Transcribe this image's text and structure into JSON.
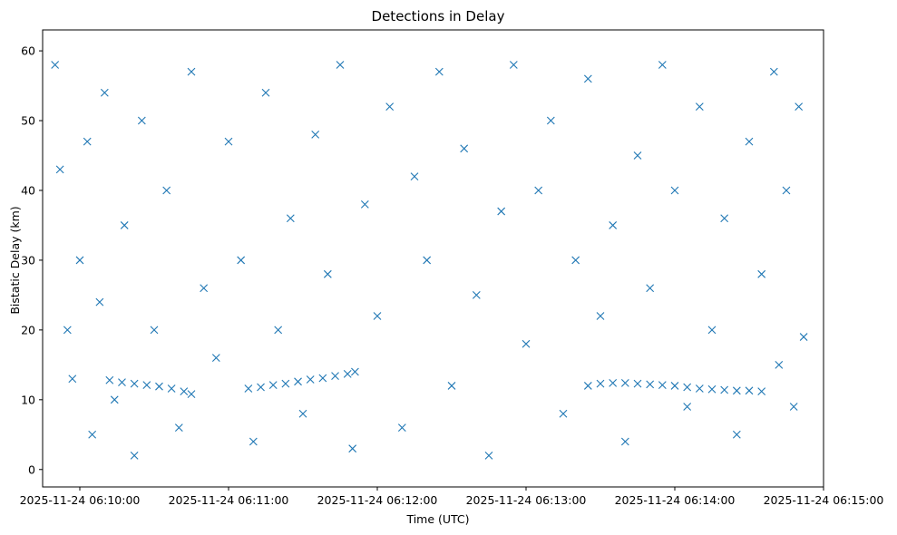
{
  "chart_data": {
    "type": "scatter",
    "title": "Detections in Delay",
    "xlabel": "Time (UTC)",
    "ylabel": "Bistatic Delay (km)",
    "x_axis_type": "time",
    "x_tick_labels": [
      "2025-11-24 06:10:00",
      "2025-11-24 06:11:00",
      "2025-11-24 06:12:00",
      "2025-11-24 06:13:00",
      "2025-11-24 06:14:00",
      "2025-11-24 06:15:00"
    ],
    "xlim": [
      "2025-11-24 06:09:45",
      "2025-11-24 06:15:00"
    ],
    "y_ticks": [
      0,
      10,
      20,
      30,
      40,
      50,
      60
    ],
    "ylim": [
      -2.5,
      63
    ],
    "grid": false,
    "legend": "none",
    "marker": "x",
    "color": "#1f77b4",
    "series": [
      {
        "description": "sampled clutter points",
        "points": [
          [
            "2025-11-24 06:09:50",
            58.0
          ],
          [
            "2025-11-24 06:09:52",
            43.0
          ],
          [
            "2025-11-24 06:09:55",
            20.0
          ],
          [
            "2025-11-24 06:09:57",
            13.0
          ],
          [
            "2025-11-24 06:10:00",
            30.0
          ],
          [
            "2025-11-24 06:10:03",
            47.0
          ],
          [
            "2025-11-24 06:10:05",
            5.0
          ],
          [
            "2025-11-24 06:10:08",
            24.0
          ],
          [
            "2025-11-24 06:10:10",
            54.0
          ],
          [
            "2025-11-24 06:10:14",
            10.0
          ],
          [
            "2025-11-24 06:10:18",
            35.0
          ],
          [
            "2025-11-24 06:10:22",
            2.0
          ],
          [
            "2025-11-24 06:10:25",
            50.0
          ],
          [
            "2025-11-24 06:10:30",
            20.0
          ],
          [
            "2025-11-24 06:10:35",
            40.0
          ],
          [
            "2025-11-24 06:10:40",
            6.0
          ],
          [
            "2025-11-24 06:10:45",
            57.0
          ],
          [
            "2025-11-24 06:10:50",
            26.0
          ],
          [
            "2025-11-24 06:10:55",
            16.0
          ],
          [
            "2025-11-24 06:11:00",
            47.0
          ],
          [
            "2025-11-24 06:11:05",
            30.0
          ],
          [
            "2025-11-24 06:11:10",
            4.0
          ],
          [
            "2025-11-24 06:11:15",
            54.0
          ],
          [
            "2025-11-24 06:11:20",
            20.0
          ],
          [
            "2025-11-24 06:11:25",
            36.0
          ],
          [
            "2025-11-24 06:11:30",
            8.0
          ],
          [
            "2025-11-24 06:11:35",
            48.0
          ],
          [
            "2025-11-24 06:11:40",
            28.0
          ],
          [
            "2025-11-24 06:11:45",
            58.0
          ],
          [
            "2025-11-24 06:11:50",
            3.0
          ],
          [
            "2025-11-24 06:11:55",
            38.0
          ],
          [
            "2025-11-24 06:12:00",
            22.0
          ],
          [
            "2025-11-24 06:12:05",
            52.0
          ],
          [
            "2025-11-24 06:12:10",
            6.0
          ],
          [
            "2025-11-24 06:12:15",
            42.0
          ],
          [
            "2025-11-24 06:12:20",
            30.0
          ],
          [
            "2025-11-24 06:12:25",
            57.0
          ],
          [
            "2025-11-24 06:12:30",
            12.0
          ],
          [
            "2025-11-24 06:12:35",
            46.0
          ],
          [
            "2025-11-24 06:12:40",
            25.0
          ],
          [
            "2025-11-24 06:12:45",
            2.0
          ],
          [
            "2025-11-24 06:12:50",
            37.0
          ],
          [
            "2025-11-24 06:12:55",
            58.0
          ],
          [
            "2025-11-24 06:13:00",
            18.0
          ],
          [
            "2025-11-24 06:13:05",
            40.0
          ],
          [
            "2025-11-24 06:13:10",
            50.0
          ],
          [
            "2025-11-24 06:13:15",
            8.0
          ],
          [
            "2025-11-24 06:13:20",
            30.0
          ],
          [
            "2025-11-24 06:13:25",
            56.0
          ],
          [
            "2025-11-24 06:13:30",
            22.0
          ],
          [
            "2025-11-24 06:13:35",
            35.0
          ],
          [
            "2025-11-24 06:13:40",
            4.0
          ],
          [
            "2025-11-24 06:13:45",
            45.0
          ],
          [
            "2025-11-24 06:13:50",
            26.0
          ],
          [
            "2025-11-24 06:13:55",
            58.0
          ],
          [
            "2025-11-24 06:14:00",
            40.0
          ],
          [
            "2025-11-24 06:14:05",
            9.0
          ],
          [
            "2025-11-24 06:14:10",
            52.0
          ],
          [
            "2025-11-24 06:14:15",
            20.0
          ],
          [
            "2025-11-24 06:14:20",
            36.0
          ],
          [
            "2025-11-24 06:14:25",
            5.0
          ],
          [
            "2025-11-24 06:14:30",
            47.0
          ],
          [
            "2025-11-24 06:14:35",
            28.0
          ],
          [
            "2025-11-24 06:14:40",
            57.0
          ],
          [
            "2025-11-24 06:14:42",
            15.0
          ],
          [
            "2025-11-24 06:14:45",
            40.0
          ],
          [
            "2025-11-24 06:14:48",
            9.0
          ],
          [
            "2025-11-24 06:14:50",
            52.0
          ],
          [
            "2025-11-24 06:14:52",
            19.0
          ]
        ]
      },
      {
        "description": "track 1",
        "points": [
          [
            "2025-11-24 06:10:12",
            12.8
          ],
          [
            "2025-11-24 06:10:17",
            12.5
          ],
          [
            "2025-11-24 06:10:22",
            12.3
          ],
          [
            "2025-11-24 06:10:27",
            12.1
          ],
          [
            "2025-11-24 06:10:32",
            11.9
          ],
          [
            "2025-11-24 06:10:37",
            11.6
          ],
          [
            "2025-11-24 06:10:42",
            11.2
          ],
          [
            "2025-11-24 06:10:45",
            10.8
          ]
        ]
      },
      {
        "description": "track 2",
        "points": [
          [
            "2025-11-24 06:11:08",
            11.6
          ],
          [
            "2025-11-24 06:11:13",
            11.8
          ],
          [
            "2025-11-24 06:11:18",
            12.1
          ],
          [
            "2025-11-24 06:11:23",
            12.3
          ],
          [
            "2025-11-24 06:11:28",
            12.6
          ],
          [
            "2025-11-24 06:11:33",
            12.9
          ],
          [
            "2025-11-24 06:11:38",
            13.1
          ],
          [
            "2025-11-24 06:11:43",
            13.4
          ],
          [
            "2025-11-24 06:11:48",
            13.7
          ],
          [
            "2025-11-24 06:11:51",
            14.0
          ]
        ]
      },
      {
        "description": "track 3",
        "points": [
          [
            "2025-11-24 06:13:25",
            12.0
          ],
          [
            "2025-11-24 06:13:30",
            12.3
          ],
          [
            "2025-11-24 06:13:35",
            12.4
          ],
          [
            "2025-11-24 06:13:40",
            12.4
          ],
          [
            "2025-11-24 06:13:45",
            12.3
          ],
          [
            "2025-11-24 06:13:50",
            12.2
          ],
          [
            "2025-11-24 06:13:55",
            12.1
          ],
          [
            "2025-11-24 06:14:00",
            12.0
          ],
          [
            "2025-11-24 06:14:05",
            11.8
          ],
          [
            "2025-11-24 06:14:10",
            11.6
          ],
          [
            "2025-11-24 06:14:15",
            11.5
          ],
          [
            "2025-11-24 06:14:20",
            11.4
          ],
          [
            "2025-11-24 06:14:25",
            11.3
          ],
          [
            "2025-11-24 06:14:30",
            11.3
          ],
          [
            "2025-11-24 06:14:35",
            11.2
          ]
        ]
      }
    ]
  }
}
